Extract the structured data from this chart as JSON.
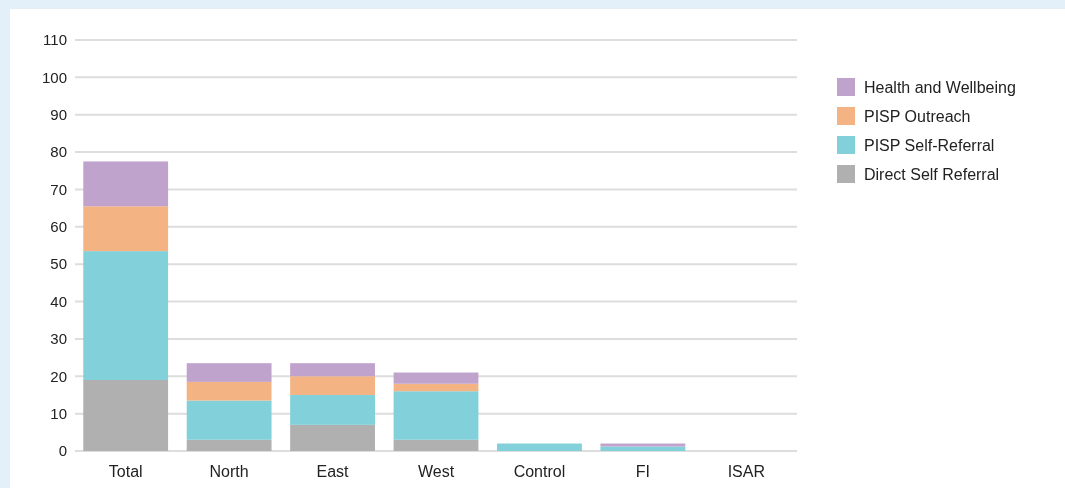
{
  "chart_data": {
    "type": "bar",
    "stacked": true,
    "categories": [
      "Total",
      "North",
      "East",
      "West",
      "Control",
      "FI",
      "ISAR"
    ],
    "series": [
      {
        "name": "Direct Self Referral",
        "color": "#b0b0b0",
        "values": [
          19,
          3,
          7,
          3,
          0,
          0,
          0
        ]
      },
      {
        "name": "PISP Self-Referral",
        "color": "#82d0d9",
        "values": [
          34.5,
          10.5,
          8,
          13,
          2,
          1.2,
          0
        ]
      },
      {
        "name": "PISP Outreach",
        "color": "#f4b383",
        "values": [
          12,
          5,
          5,
          2,
          0,
          0,
          0
        ]
      },
      {
        "name": "Health and Wellbeing",
        "color": "#c0a3cc",
        "values": [
          12,
          5,
          3.5,
          3,
          0,
          0.8,
          0
        ]
      }
    ],
    "ylim": [
      0,
      110
    ],
    "yticks": [
      0,
      10,
      20,
      30,
      40,
      50,
      60,
      70,
      80,
      90,
      100,
      110
    ],
    "grid": "y",
    "legend": "top right"
  }
}
